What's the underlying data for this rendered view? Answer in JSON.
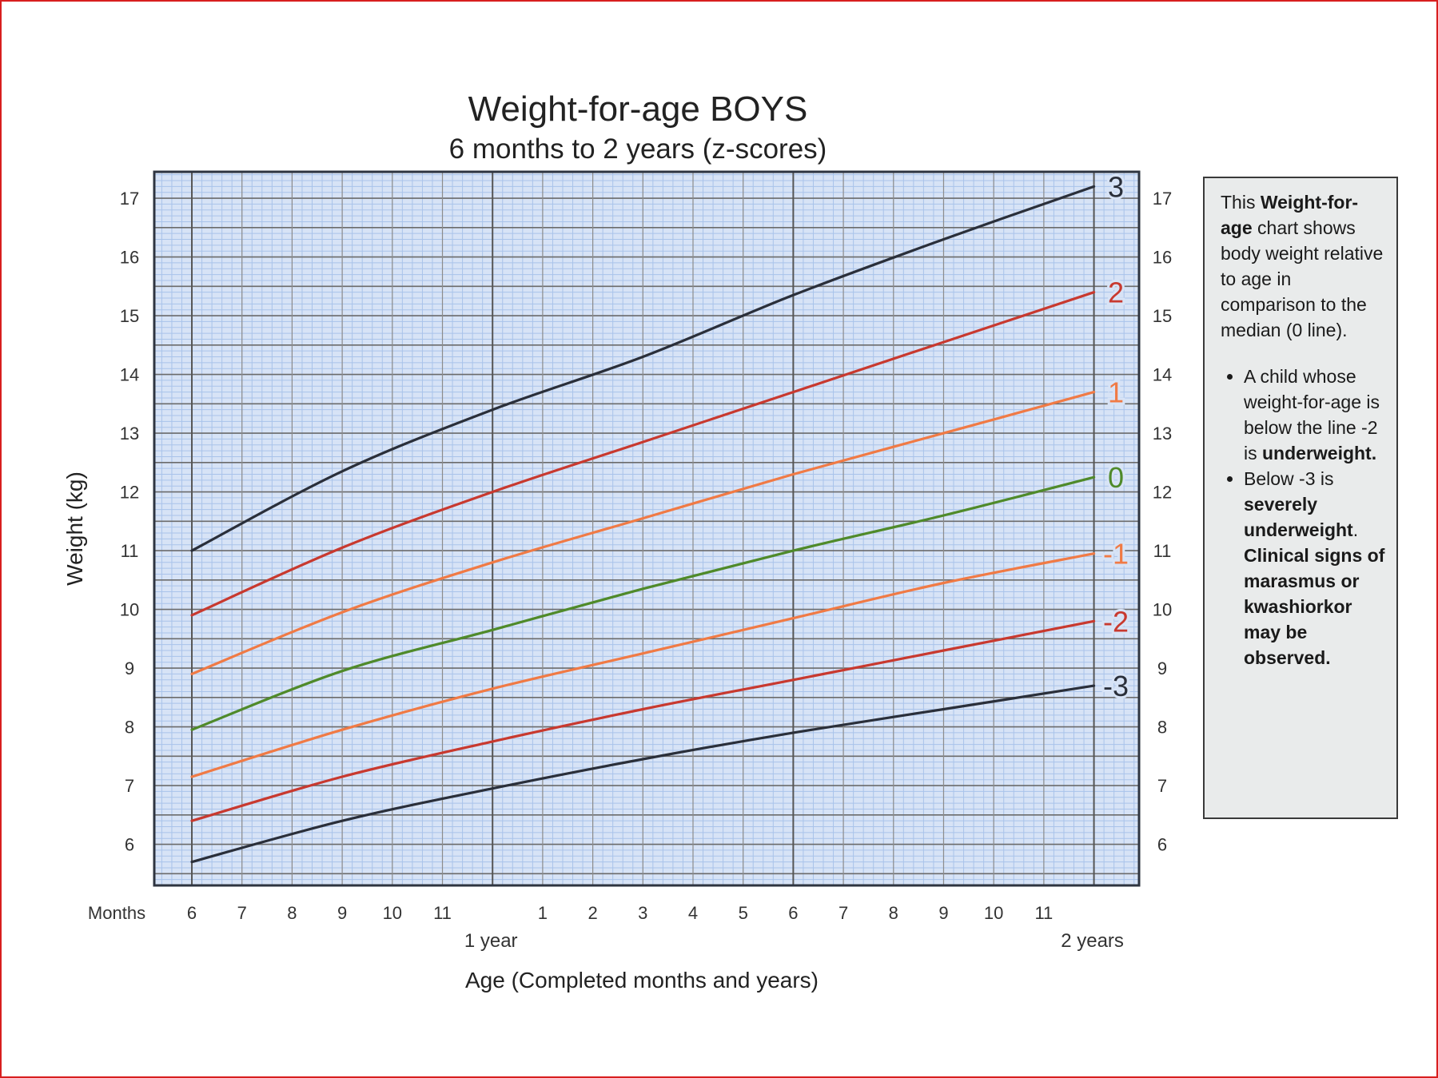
{
  "chart_data": {
    "type": "line",
    "title": "Weight-for-age  BOYS",
    "subtitle": "6 months to 2 years (z-scores)",
    "ylabel": "Weight (kg)",
    "xlabel": "Age (Completed months and years)",
    "x_unit_label": "Months",
    "x_major_labels": [
      {
        "month": 12,
        "label": "1 year"
      },
      {
        "month": 24,
        "label": "2 years"
      }
    ],
    "x_tick_labels": [
      {
        "month": 6,
        "label": "6"
      },
      {
        "month": 7,
        "label": "7"
      },
      {
        "month": 8,
        "label": "8"
      },
      {
        "month": 9,
        "label": "9"
      },
      {
        "month": 10,
        "label": "10"
      },
      {
        "month": 11,
        "label": "11"
      },
      {
        "month": 13,
        "label": "1"
      },
      {
        "month": 14,
        "label": "2"
      },
      {
        "month": 15,
        "label": "3"
      },
      {
        "month": 16,
        "label": "4"
      },
      {
        "month": 17,
        "label": "5"
      },
      {
        "month": 18,
        "label": "6"
      },
      {
        "month": 19,
        "label": "7"
      },
      {
        "month": 20,
        "label": "8"
      },
      {
        "month": 21,
        "label": "9"
      },
      {
        "month": 22,
        "label": "10"
      },
      {
        "month": 23,
        "label": "11"
      }
    ],
    "xlim": [
      5.25,
      24.9
    ],
    "ylim": [
      5.3,
      17.45
    ],
    "yticks": [
      6,
      7,
      8,
      9,
      10,
      11,
      12,
      13,
      14,
      15,
      16,
      17
    ],
    "grid": true,
    "series": [
      {
        "name": "3",
        "color": "#2a2f3a",
        "points": [
          [
            6,
            11.0
          ],
          [
            9,
            12.35
          ],
          [
            12,
            13.4
          ],
          [
            15,
            14.3
          ],
          [
            18,
            15.35
          ],
          [
            21,
            16.3
          ],
          [
            24,
            17.2
          ]
        ]
      },
      {
        "name": "2",
        "color": "#c8392f",
        "points": [
          [
            6,
            9.9
          ],
          [
            9,
            11.05
          ],
          [
            12,
            12.0
          ],
          [
            15,
            12.85
          ],
          [
            18,
            13.7
          ],
          [
            21,
            14.55
          ],
          [
            24,
            15.4
          ]
        ]
      },
      {
        "name": "1",
        "color": "#f07a45",
        "points": [
          [
            6,
            8.9
          ],
          [
            9,
            9.95
          ],
          [
            12,
            10.8
          ],
          [
            15,
            11.55
          ],
          [
            18,
            12.3
          ],
          [
            21,
            13.0
          ],
          [
            24,
            13.7
          ]
        ]
      },
      {
        "name": "0",
        "color": "#4f8a2a",
        "points": [
          [
            6,
            7.95
          ],
          [
            9,
            8.95
          ],
          [
            12,
            9.65
          ],
          [
            15,
            10.35
          ],
          [
            18,
            11.0
          ],
          [
            21,
            11.6
          ],
          [
            24,
            12.25
          ]
        ]
      },
      {
        "name": "-1",
        "color": "#f07a45",
        "points": [
          [
            6,
            7.15
          ],
          [
            9,
            7.95
          ],
          [
            12,
            8.65
          ],
          [
            15,
            9.25
          ],
          [
            18,
            9.85
          ],
          [
            21,
            10.45
          ],
          [
            24,
            10.95
          ]
        ]
      },
      {
        "name": "-2",
        "color": "#c8392f",
        "points": [
          [
            6,
            6.4
          ],
          [
            9,
            7.15
          ],
          [
            12,
            7.75
          ],
          [
            15,
            8.3
          ],
          [
            18,
            8.8
          ],
          [
            21,
            9.3
          ],
          [
            24,
            9.8
          ]
        ]
      },
      {
        "name": "-3",
        "color": "#2a2f3a",
        "points": [
          [
            6,
            5.7
          ],
          [
            9,
            6.4
          ],
          [
            12,
            6.95
          ],
          [
            15,
            7.45
          ],
          [
            18,
            7.9
          ],
          [
            21,
            8.3
          ],
          [
            24,
            8.7
          ]
        ]
      }
    ]
  },
  "info_box": {
    "intro_1": "This ",
    "intro_bold": "Weight-for-age",
    "intro_2": " chart shows body weight relative to age in comparison to the median (0 line).",
    "bullet1_1": "A child whose weight-for-age is below the line -2 is ",
    "bullet1_bold": "underweight.",
    "bullet2_1": "Below -3 is ",
    "bullet2_bold_a": "severely underweight",
    "bullet2_2": ". ",
    "bullet2_bold_b": "Clinical signs of marasmus or kwashiorkor may be observed."
  },
  "colors": {
    "plot_background": "#d7e3f6",
    "fine_grid": "#a9c3ea",
    "major_grid": "#555555",
    "frame": "#d81f1f"
  }
}
